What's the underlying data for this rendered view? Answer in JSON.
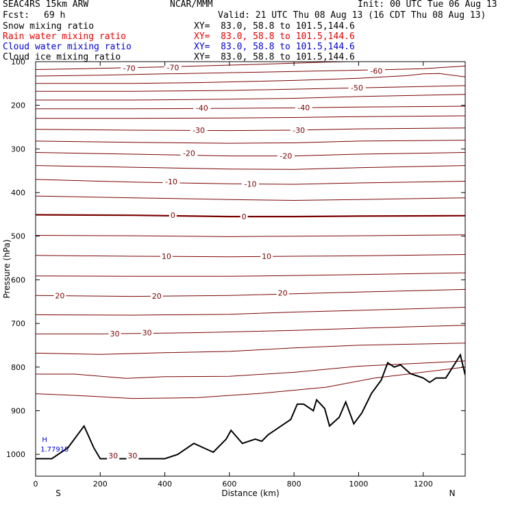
{
  "header": {
    "model": "SEAC4RS 15km ARW",
    "center": "NCAR/MMM",
    "init": "Init: 00 UTC Tue 06 Aug 13",
    "fcst_label": "Fcst:",
    "fcst_value": "69 h",
    "valid": "Valid: 21 UTC Thu 08 Aug 13 (16 CDT Thu 08 Aug 13)"
  },
  "fields": [
    {
      "name": "Snow mixing ratio",
      "xy": "XY=  83.0, 58.8 to 101.5,144.6",
      "color": "#000000"
    },
    {
      "name": "Rain water mixing ratio",
      "xy": "XY=  83.0, 58.8 to 101.5,144.6",
      "color": "#e00000"
    },
    {
      "name": "Cloud water mixing ratio",
      "xy": "XY=  83.0, 58.8 to 101.5,144.6",
      "color": "#0000cc"
    },
    {
      "name": "Cloud ice mixing ratio",
      "xy": "XY=  83.0, 58.8 to 101.5,144.6",
      "color": "#000000"
    }
  ],
  "chart_data": {
    "type": "line",
    "xlabel": "Distance (km)",
    "ylabel": "Pressure (hPa)",
    "xlim": [
      0,
      1330
    ],
    "ylim": [
      1050,
      100
    ],
    "y_scale": "inverted",
    "xticks": [
      0,
      200,
      400,
      600,
      800,
      1000,
      1200
    ],
    "yticks": [
      100,
      200,
      300,
      400,
      500,
      600,
      700,
      800,
      900,
      1000
    ],
    "end_labels": {
      "left": "S",
      "right": "N"
    },
    "contour_color": "#7a0000",
    "zero_line_color": "#7a0000",
    "isotherms": [
      {
        "value": -70,
        "p": [
          [
            0,
            118
          ],
          [
            150,
            116
          ],
          [
            400,
            112
          ],
          [
            700,
            106
          ],
          [
            900,
            101
          ],
          [
            1100,
            98
          ],
          [
            1330,
            96
          ]
        ]
      },
      {
        "value": -60,
        "p": [
          [
            0,
            133
          ],
          [
            200,
            131
          ],
          [
            400,
            128
          ],
          [
            700,
            124
          ],
          [
            900,
            121
          ],
          [
            1100,
            118
          ],
          [
            1200,
            116
          ],
          [
            1330,
            110
          ]
        ]
      },
      {
        "value": -55,
        "p": [
          [
            0,
            150
          ],
          [
            300,
            150
          ],
          [
            500,
            148
          ],
          [
            800,
            143
          ],
          [
            1000,
            138
          ],
          [
            1150,
            132
          ],
          [
            1200,
            128
          ],
          [
            1250,
            127
          ],
          [
            1330,
            135
          ]
        ]
      },
      {
        "value": -50,
        "p": [
          [
            0,
            168
          ],
          [
            300,
            168
          ],
          [
            600,
            166
          ],
          [
            800,
            163
          ],
          [
            1000,
            160
          ],
          [
            1200,
            157
          ],
          [
            1330,
            155
          ]
        ]
      },
      {
        "value": -45,
        "p": [
          [
            0,
            188
          ],
          [
            300,
            188
          ],
          [
            600,
            186
          ],
          [
            800,
            184
          ],
          [
            1000,
            180
          ],
          [
            1200,
            177
          ],
          [
            1330,
            175
          ]
        ]
      },
      {
        "value": -40,
        "p": [
          [
            0,
            208
          ],
          [
            300,
            208
          ],
          [
            600,
            207
          ],
          [
            800,
            206
          ],
          [
            1000,
            204
          ],
          [
            1330,
            202
          ]
        ]
      },
      {
        "value": -35,
        "p": [
          [
            0,
            230
          ],
          [
            300,
            230
          ],
          [
            600,
            229
          ],
          [
            800,
            228
          ],
          [
            1000,
            226
          ],
          [
            1330,
            224
          ]
        ]
      },
      {
        "value": -30,
        "p": [
          [
            0,
            255
          ],
          [
            300,
            257
          ],
          [
            600,
            258
          ],
          [
            800,
            257
          ],
          [
            1000,
            254
          ],
          [
            1330,
            252
          ]
        ]
      },
      {
        "value": -25,
        "p": [
          [
            0,
            282
          ],
          [
            300,
            285
          ],
          [
            600,
            287
          ],
          [
            800,
            286
          ],
          [
            1000,
            282
          ],
          [
            1330,
            280
          ]
        ]
      },
      {
        "value": -20,
        "p": [
          [
            0,
            308
          ],
          [
            300,
            312
          ],
          [
            600,
            316
          ],
          [
            800,
            316
          ],
          [
            1000,
            312
          ],
          [
            1330,
            308
          ]
        ]
      },
      {
        "value": -15,
        "p": [
          [
            0,
            338
          ],
          [
            300,
            342
          ],
          [
            600,
            346
          ],
          [
            800,
            347
          ],
          [
            1000,
            343
          ],
          [
            1330,
            338
          ]
        ]
      },
      {
        "value": -10,
        "p": [
          [
            0,
            370
          ],
          [
            300,
            376
          ],
          [
            600,
            380
          ],
          [
            800,
            381
          ],
          [
            1000,
            378
          ],
          [
            1330,
            374
          ]
        ]
      },
      {
        "value": -5,
        "p": [
          [
            0,
            408
          ],
          [
            300,
            412
          ],
          [
            600,
            416
          ],
          [
            800,
            418
          ],
          [
            1000,
            416
          ],
          [
            1330,
            412
          ]
        ]
      },
      {
        "value": 0,
        "p": [
          [
            0,
            451
          ],
          [
            300,
            452
          ],
          [
            600,
            455
          ],
          [
            800,
            455
          ],
          [
            1000,
            454
          ],
          [
            1330,
            453
          ]
        ]
      },
      {
        "value": 5,
        "p": [
          [
            0,
            498
          ],
          [
            300,
            499
          ],
          [
            600,
            501
          ],
          [
            800,
            500
          ],
          [
            1000,
            499
          ],
          [
            1330,
            497
          ]
        ]
      },
      {
        "value": 10,
        "p": [
          [
            0,
            544
          ],
          [
            300,
            546
          ],
          [
            600,
            547
          ],
          [
            800,
            546
          ],
          [
            1000,
            545
          ],
          [
            1330,
            542
          ]
        ]
      },
      {
        "value": 15,
        "p": [
          [
            0,
            591
          ],
          [
            300,
            592
          ],
          [
            600,
            592
          ],
          [
            800,
            590
          ],
          [
            1000,
            588
          ],
          [
            1330,
            584
          ]
        ]
      },
      {
        "value": 20,
        "p": [
          [
            0,
            636
          ],
          [
            300,
            638
          ],
          [
            600,
            636
          ],
          [
            800,
            632
          ],
          [
            1000,
            628
          ],
          [
            1330,
            622
          ]
        ]
      },
      {
        "value": 25,
        "p": [
          [
            0,
            680
          ],
          [
            300,
            681
          ],
          [
            600,
            679
          ],
          [
            800,
            674
          ],
          [
            1000,
            670
          ],
          [
            1330,
            663
          ]
        ]
      },
      {
        "value": 30,
        "p": [
          [
            0,
            724
          ],
          [
            200,
            724
          ],
          [
            500,
            721
          ],
          [
            800,
            716
          ],
          [
            1000,
            711
          ],
          [
            1330,
            704
          ]
        ]
      },
      {
        "value": 35,
        "p": [
          [
            0,
            768
          ],
          [
            200,
            771
          ],
          [
            400,
            767
          ],
          [
            600,
            764
          ],
          [
            800,
            756
          ],
          [
            1000,
            750
          ],
          [
            1330,
            745
          ]
        ]
      },
      {
        "value": 40,
        "p": [
          [
            0,
            816
          ],
          [
            120,
            816
          ],
          [
            280,
            826
          ],
          [
            400,
            822
          ],
          [
            600,
            821
          ],
          [
            800,
            812
          ],
          [
            1000,
            798
          ],
          [
            1330,
            786
          ]
        ]
      },
      {
        "value": 45,
        "p": [
          [
            0,
            861
          ],
          [
            150,
            866
          ],
          [
            300,
            872
          ],
          [
            500,
            870
          ],
          [
            700,
            860
          ],
          [
            900,
            846
          ],
          [
            1050,
            825
          ],
          [
            1330,
            800
          ]
        ]
      }
    ],
    "contour_labels": [
      {
        "text": "-70",
        "x": 290,
        "p": 115
      },
      {
        "text": "-70",
        "x": 425,
        "p": 113
      },
      {
        "text": "-60",
        "x": 1055,
        "p": 121
      },
      {
        "text": "-50",
        "x": 995,
        "p": 160
      },
      {
        "text": "-40",
        "x": 515,
        "p": 206
      },
      {
        "text": "-40",
        "x": 830,
        "p": 205
      },
      {
        "text": "-30",
        "x": 505,
        "p": 257
      },
      {
        "text": "-30",
        "x": 815,
        "p": 257
      },
      {
        "text": "-20",
        "x": 475,
        "p": 310
      },
      {
        "text": "-20",
        "x": 775,
        "p": 316
      },
      {
        "text": "-10",
        "x": 420,
        "p": 375
      },
      {
        "text": "-10",
        "x": 665,
        "p": 380
      },
      {
        "text": "0",
        "x": 425,
        "p": 452
      },
      {
        "text": "0",
        "x": 645,
        "p": 455
      },
      {
        "text": "10",
        "x": 405,
        "p": 546
      },
      {
        "text": "10",
        "x": 715,
        "p": 546
      },
      {
        "text": "20",
        "x": 75,
        "p": 636
      },
      {
        "text": "20",
        "x": 375,
        "p": 637
      },
      {
        "text": "20",
        "x": 765,
        "p": 630
      },
      {
        "text": "30",
        "x": 245,
        "p": 723
      },
      {
        "text": "30",
        "x": 345,
        "p": 721
      },
      {
        "text": "30",
        "x": 240,
        "p": 1003
      },
      {
        "text": "30",
        "x": 300,
        "p": 1003
      }
    ],
    "terrain": [
      [
        0,
        1010
      ],
      [
        50,
        1010
      ],
      [
        100,
        985
      ],
      [
        150,
        935
      ],
      [
        180,
        985
      ],
      [
        200,
        1010
      ],
      [
        300,
        1010
      ],
      [
        400,
        1010
      ],
      [
        440,
        1000
      ],
      [
        490,
        975
      ],
      [
        520,
        985
      ],
      [
        550,
        995
      ],
      [
        590,
        965
      ],
      [
        605,
        945
      ],
      [
        640,
        975
      ],
      [
        680,
        965
      ],
      [
        700,
        970
      ],
      [
        720,
        955
      ],
      [
        750,
        940
      ],
      [
        790,
        920
      ],
      [
        810,
        885
      ],
      [
        830,
        885
      ],
      [
        860,
        900
      ],
      [
        870,
        875
      ],
      [
        895,
        895
      ],
      [
        910,
        935
      ],
      [
        940,
        915
      ],
      [
        960,
        880
      ],
      [
        985,
        930
      ],
      [
        1010,
        905
      ],
      [
        1040,
        860
      ],
      [
        1070,
        830
      ],
      [
        1090,
        790
      ],
      [
        1110,
        800
      ],
      [
        1130,
        795
      ],
      [
        1160,
        815
      ],
      [
        1180,
        820
      ],
      [
        1200,
        825
      ],
      [
        1220,
        835
      ],
      [
        1240,
        825
      ],
      [
        1270,
        825
      ],
      [
        1300,
        790
      ],
      [
        1315,
        772
      ],
      [
        1330,
        818
      ]
    ],
    "annotations": [
      {
        "text": "H",
        "x": 20,
        "p": 965
      },
      {
        "text": "1.77915",
        "x": 15,
        "p": 987
      }
    ]
  }
}
